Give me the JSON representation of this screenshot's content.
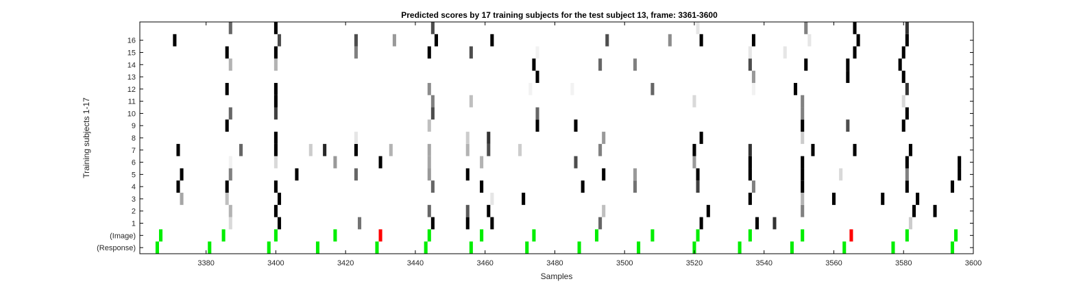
{
  "chart_data": {
    "type": "heatmap",
    "title": "Predicted scores by 17 training subjects for the test subject 13, frame: 3361-3600",
    "xlabel": "Samples",
    "ylabel": "Training subjects 1-17",
    "xlim": [
      3361,
      3600
    ],
    "x_ticks": [
      3380,
      3400,
      3420,
      3440,
      3460,
      3480,
      3500,
      3520,
      3540,
      3560,
      3580,
      3600
    ],
    "x_tick_labels": [
      "3380",
      "3400",
      "3420",
      "3440",
      "3460",
      "3480",
      "3500",
      "3520",
      "3540",
      "3560",
      "3580",
      "3600"
    ],
    "rows": [
      "(Response)",
      "(Image)",
      "1",
      "2",
      "3",
      "4",
      "5",
      "6",
      "7",
      "8",
      "9",
      "10",
      "11",
      "12",
      "13",
      "14",
      "15",
      "16",
      ""
    ],
    "y_tick_labels": [
      "(Response)",
      "(Image)",
      "1",
      "2",
      "3",
      "4",
      "5",
      "6",
      "7",
      "8",
      "9",
      "10",
      "11",
      "12",
      "13",
      "14",
      "15",
      "16"
    ],
    "colors": {
      "correct": "#00ee00",
      "incorrect": "#ff0000",
      "background": "#ffffff",
      "frame": "#000000"
    },
    "value_scale": "0 = white, 1 = black",
    "response_events": [
      3366,
      3381,
      3398,
      3412,
      3429,
      3443,
      3456,
      3472,
      3487,
      3504,
      3520,
      3533,
      3548,
      3563,
      3577,
      3594
    ],
    "image_events": [
      {
        "x": 3367,
        "status": "correct"
      },
      {
        "x": 3385,
        "status": "correct"
      },
      {
        "x": 3400,
        "status": "correct"
      },
      {
        "x": 3417,
        "status": "correct"
      },
      {
        "x": 3430,
        "status": "incorrect"
      },
      {
        "x": 3444,
        "status": "correct"
      },
      {
        "x": 3459,
        "status": "correct"
      },
      {
        "x": 3474,
        "status": "correct"
      },
      {
        "x": 3492,
        "status": "correct"
      },
      {
        "x": 3508,
        "status": "correct"
      },
      {
        "x": 3521,
        "status": "correct"
      },
      {
        "x": 3536,
        "status": "correct"
      },
      {
        "x": 3551,
        "status": "correct"
      },
      {
        "x": 3565,
        "status": "incorrect"
      },
      {
        "x": 3581,
        "status": "correct"
      },
      {
        "x": 3595,
        "status": "correct"
      }
    ],
    "subject_scores": {
      "1": [
        [
          3387,
          0.15
        ],
        [
          3401,
          1
        ],
        [
          3424,
          0.55
        ],
        [
          3445,
          1
        ],
        [
          3455,
          1
        ],
        [
          3462,
          1
        ],
        [
          3493,
          0.6
        ],
        [
          3522,
          1
        ],
        [
          3538,
          1
        ],
        [
          3543,
          0.8
        ],
        [
          3582,
          0.2
        ]
      ],
      "2": [
        [
          3387,
          0.3
        ],
        [
          3400,
          1
        ],
        [
          3444,
          0.6
        ],
        [
          3455,
          0.65
        ],
        [
          3461,
          1
        ],
        [
          3494,
          0.25
        ],
        [
          3524,
          1
        ],
        [
          3551,
          0.5
        ],
        [
          3583,
          1
        ],
        [
          3589,
          1
        ]
      ],
      "3": [
        [
          3373,
          0.35
        ],
        [
          3386,
          0.25
        ],
        [
          3401,
          1
        ],
        [
          3462,
          0.1
        ],
        [
          3471,
          1
        ],
        [
          3536,
          1
        ],
        [
          3551,
          0.3
        ],
        [
          3560,
          1
        ],
        [
          3574,
          1
        ],
        [
          3584,
          1
        ]
      ],
      "4": [
        [
          3372,
          1
        ],
        [
          3386,
          1
        ],
        [
          3400,
          1
        ],
        [
          3445,
          0.6
        ],
        [
          3459,
          1
        ],
        [
          3488,
          1
        ],
        [
          3503,
          0.55
        ],
        [
          3521,
          0.75
        ],
        [
          3537,
          0.5
        ],
        [
          3551,
          1
        ],
        [
          3581,
          1
        ],
        [
          3594,
          1
        ]
      ],
      "5": [
        [
          3373,
          1
        ],
        [
          3387,
          0.5
        ],
        [
          3406,
          1
        ],
        [
          3423,
          0.6
        ],
        [
          3444,
          0.4
        ],
        [
          3455,
          1
        ],
        [
          3494,
          1
        ],
        [
          3503,
          0.4
        ],
        [
          3521,
          1
        ],
        [
          3536,
          1
        ],
        [
          3551,
          1
        ],
        [
          3562,
          0.15
        ],
        [
          3581,
          0.5
        ],
        [
          3596,
          1
        ]
      ],
      "6": [
        [
          3387,
          0.05
        ],
        [
          3400,
          0.15
        ],
        [
          3417,
          0.4
        ],
        [
          3430,
          1
        ],
        [
          3444,
          0.35
        ],
        [
          3459,
          0.3
        ],
        [
          3486,
          0.7
        ],
        [
          3520,
          0.4
        ],
        [
          3536,
          1
        ],
        [
          3551,
          1
        ],
        [
          3581,
          1
        ],
        [
          3596,
          1
        ]
      ],
      "7": [
        [
          3372,
          1
        ],
        [
          3390,
          0.6
        ],
        [
          3400,
          1
        ],
        [
          3410,
          0.2
        ],
        [
          3414,
          0.85
        ],
        [
          3423,
          1
        ],
        [
          3433,
          0.3
        ],
        [
          3444,
          0.35
        ],
        [
          3455,
          0.3
        ],
        [
          3461,
          0.7
        ],
        [
          3470,
          0.2
        ],
        [
          3493,
          0.5
        ],
        [
          3520,
          1
        ],
        [
          3536,
          0.8
        ],
        [
          3554,
          1
        ],
        [
          3566,
          1
        ],
        [
          3582,
          1
        ]
      ],
      "8": [
        [
          3400,
          1
        ],
        [
          3423,
          0.1
        ],
        [
          3455,
          0.2
        ],
        [
          3461,
          0.8
        ],
        [
          3494,
          0.4
        ],
        [
          3522,
          1
        ],
        [
          3551,
          0.2
        ]
      ],
      "9": [
        [
          3386,
          1
        ],
        [
          3444,
          0.25
        ],
        [
          3475,
          1
        ],
        [
          3486,
          1
        ],
        [
          3551,
          1
        ],
        [
          3564,
          0.7
        ],
        [
          3580,
          1
        ]
      ],
      "10": [
        [
          3387,
          0.6
        ],
        [
          3400,
          0.75
        ],
        [
          3445,
          0.7
        ],
        [
          3475,
          0.6
        ],
        [
          3551,
          0.5
        ],
        [
          3581,
          1
        ]
      ],
      "11": [
        [
          3400,
          1
        ],
        [
          3445,
          0.5
        ],
        [
          3456,
          0.25
        ],
        [
          3520,
          0.15
        ],
        [
          3551,
          0.5
        ],
        [
          3580,
          0.15
        ]
      ],
      "12": [
        [
          3386,
          1
        ],
        [
          3400,
          1
        ],
        [
          3444,
          0.45
        ],
        [
          3473,
          0.05
        ],
        [
          3485,
          0.05
        ],
        [
          3508,
          0.6
        ],
        [
          3537,
          0.05
        ],
        [
          3549,
          1
        ],
        [
          3581,
          0.8
        ]
      ],
      "13": [
        [
          3475,
          1
        ],
        [
          3537,
          0.4
        ],
        [
          3564,
          1
        ],
        [
          3580,
          1
        ]
      ],
      "14": [
        [
          3387,
          0.3
        ],
        [
          3400,
          0.3
        ],
        [
          3474,
          1
        ],
        [
          3493,
          0.6
        ],
        [
          3503,
          0.5
        ],
        [
          3536,
          0.7
        ],
        [
          3552,
          1
        ],
        [
          3564,
          1
        ],
        [
          3579,
          1
        ]
      ],
      "15": [
        [
          3386,
          1
        ],
        [
          3400,
          1
        ],
        [
          3423,
          0.5
        ],
        [
          3444,
          1
        ],
        [
          3456,
          0.7
        ],
        [
          3475,
          0.05
        ],
        [
          3536,
          0.1
        ],
        [
          3546,
          0.1
        ],
        [
          3566,
          1
        ],
        [
          3580,
          1
        ]
      ],
      "16": [
        [
          3371,
          1
        ],
        [
          3401,
          0.7
        ],
        [
          3423,
          0.7
        ],
        [
          3434,
          0.4
        ],
        [
          3446,
          1
        ],
        [
          3462,
          1
        ],
        [
          3495,
          0.7
        ],
        [
          3513,
          0.45
        ],
        [
          3522,
          1
        ],
        [
          3537,
          1
        ],
        [
          3553,
          0.1
        ],
        [
          3567,
          1
        ],
        [
          3581,
          1
        ]
      ],
      "17": [
        [
          3387,
          0.6
        ],
        [
          3400,
          1
        ],
        [
          3445,
          0.7
        ],
        [
          3521,
          0.1
        ],
        [
          3552,
          0.5
        ],
        [
          3566,
          1
        ],
        [
          3581,
          0.8
        ]
      ]
    }
  }
}
